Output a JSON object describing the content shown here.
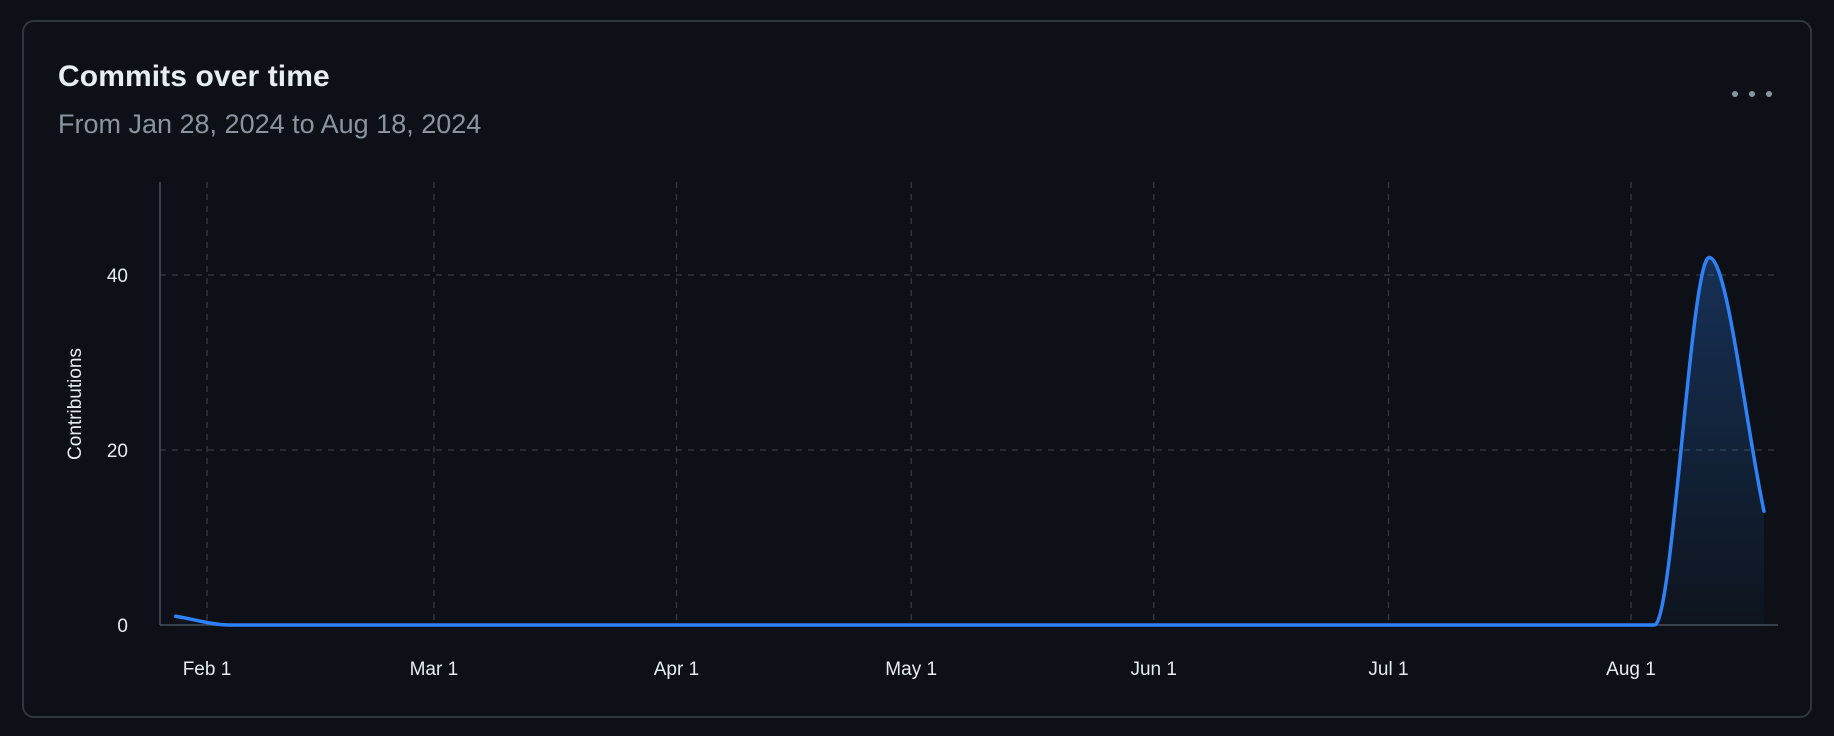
{
  "card": {
    "title": "Commits over time",
    "subtitle": "From Jan 28, 2024 to Aug 18, 2024",
    "menu_icon": "kebab-horizontal-icon"
  },
  "colors": {
    "background": "#0d1117",
    "border": "#30363d",
    "line": "#2f81f7",
    "grid": "#30363d",
    "text": "#e6edf3",
    "muted": "#8b949e"
  },
  "chart_data": {
    "type": "area",
    "title": "Commits over time",
    "ylabel": "Contributions",
    "xlabel": "",
    "x_ticks": [
      "Feb 1",
      "Mar 1",
      "Apr 1",
      "May 1",
      "Jun 1",
      "Jul 1",
      "Aug 1"
    ],
    "y_ticks": [
      0,
      20,
      40
    ],
    "ylim": [
      0,
      50
    ],
    "xlim": [
      "2024-01-28",
      "2024-08-18"
    ],
    "grid": true,
    "legend": "none",
    "series": [
      {
        "points": [
          {
            "x": "2024-01-28",
            "y": 1
          },
          {
            "x": "2024-02-04",
            "y": 0
          },
          {
            "x": "2024-02-11",
            "y": 0
          },
          {
            "x": "2024-02-18",
            "y": 0
          },
          {
            "x": "2024-02-25",
            "y": 0
          },
          {
            "x": "2024-03-03",
            "y": 0
          },
          {
            "x": "2024-03-10",
            "y": 0
          },
          {
            "x": "2024-03-17",
            "y": 0
          },
          {
            "x": "2024-03-24",
            "y": 0
          },
          {
            "x": "2024-03-31",
            "y": 0
          },
          {
            "x": "2024-04-07",
            "y": 0
          },
          {
            "x": "2024-04-14",
            "y": 0
          },
          {
            "x": "2024-04-21",
            "y": 0
          },
          {
            "x": "2024-04-28",
            "y": 0
          },
          {
            "x": "2024-05-05",
            "y": 0
          },
          {
            "x": "2024-05-12",
            "y": 0
          },
          {
            "x": "2024-05-19",
            "y": 0
          },
          {
            "x": "2024-05-26",
            "y": 0
          },
          {
            "x": "2024-06-02",
            "y": 0
          },
          {
            "x": "2024-06-09",
            "y": 0
          },
          {
            "x": "2024-06-16",
            "y": 0
          },
          {
            "x": "2024-06-23",
            "y": 0
          },
          {
            "x": "2024-06-30",
            "y": 0
          },
          {
            "x": "2024-07-07",
            "y": 0
          },
          {
            "x": "2024-07-14",
            "y": 0
          },
          {
            "x": "2024-07-21",
            "y": 0
          },
          {
            "x": "2024-07-28",
            "y": 0
          },
          {
            "x": "2024-08-04",
            "y": 0
          },
          {
            "x": "2024-08-11",
            "y": 42
          },
          {
            "x": "2024-08-18",
            "y": 13
          }
        ]
      }
    ]
  }
}
